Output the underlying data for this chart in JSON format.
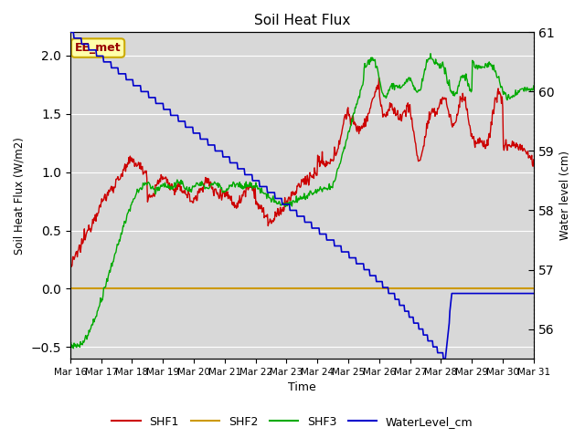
{
  "title": "Soil Heat Flux",
  "ylabel_left": "Soil Heat Flux (W/m2)",
  "ylabel_right": "Water level (cm)",
  "xlabel": "Time",
  "ylim_left": [
    -0.6,
    2.2
  ],
  "ylim_right": [
    55.5,
    61.0
  ],
  "background_color": "#d8d8d8",
  "annotation_text": "EE_met",
  "annotation_bg": "#ffffaa",
  "annotation_border": "#ccaa00",
  "annotation_text_color": "#990000",
  "x_tick_labels": [
    "Mar 16",
    "Mar 17",
    "Mar 18",
    "Mar 19",
    "Mar 20",
    "Mar 21",
    "Mar 22",
    "Mar 23",
    "Mar 24",
    "Mar 25",
    "Mar 26",
    "Mar 27",
    "Mar 28",
    "Mar 29",
    "Mar 30",
    "Mar 31"
  ],
  "legend_labels": [
    "SHF1",
    "SHF2",
    "SHF3",
    "WaterLevel_cm"
  ],
  "shf1_color": "#cc0000",
  "shf2_color": "#cc9900",
  "shf3_color": "#00aa00",
  "water_color": "#0000cc",
  "grid_color": "#ffffff",
  "n_days": 15,
  "n_pts_per_day": 48
}
